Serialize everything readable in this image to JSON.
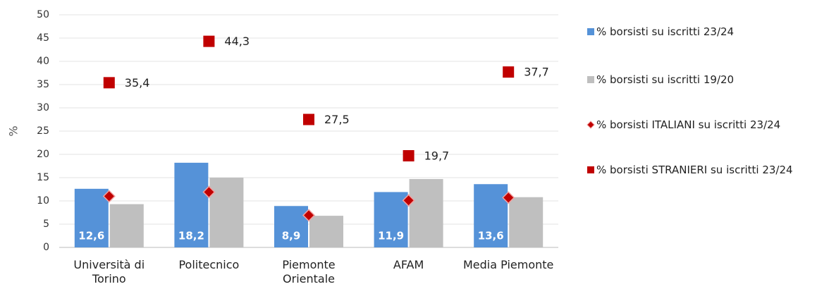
{
  "chart_data": {
    "type": "bar",
    "y_label": "%",
    "categories": [
      "Università di Torino",
      "Politecnico",
      "Piemonte Orientale",
      "AFAM",
      "Media Piemonte"
    ],
    "series": [
      {
        "name": "% borsisti su iscritti 23/24",
        "mark": "bar",
        "color": "#5592d8",
        "values": [
          12.6,
          18.2,
          8.9,
          11.9,
          13.6
        ],
        "value_labels": [
          "12,6",
          "18,2",
          "8,9",
          "11,9",
          "13,6"
        ]
      },
      {
        "name": "% borsisti su iscritti 19/20",
        "mark": "bar",
        "color": "#bfbfbf",
        "values": [
          9.3,
          15.0,
          6.8,
          14.7,
          10.8
        ]
      },
      {
        "name": "% borsisti ITALIANI su iscritti 23/24",
        "mark": "diamond",
        "color": "#c00000",
        "values": [
          11.0,
          11.9,
          6.9,
          10.1,
          10.7
        ]
      },
      {
        "name": "% borsisti STRANIERI su iscritti 23/24",
        "mark": "square",
        "color": "#c00000",
        "values": [
          35.4,
          44.3,
          27.5,
          19.7,
          37.7
        ],
        "value_labels": [
          "35,4",
          "44,3",
          "27,5",
          "19,7",
          "37,7"
        ]
      }
    ],
    "ylim": [
      0,
      50
    ],
    "yticks": [
      0,
      5,
      10,
      15,
      20,
      25,
      30,
      35,
      40,
      45,
      50
    ],
    "grid": true,
    "legend": "right"
  }
}
